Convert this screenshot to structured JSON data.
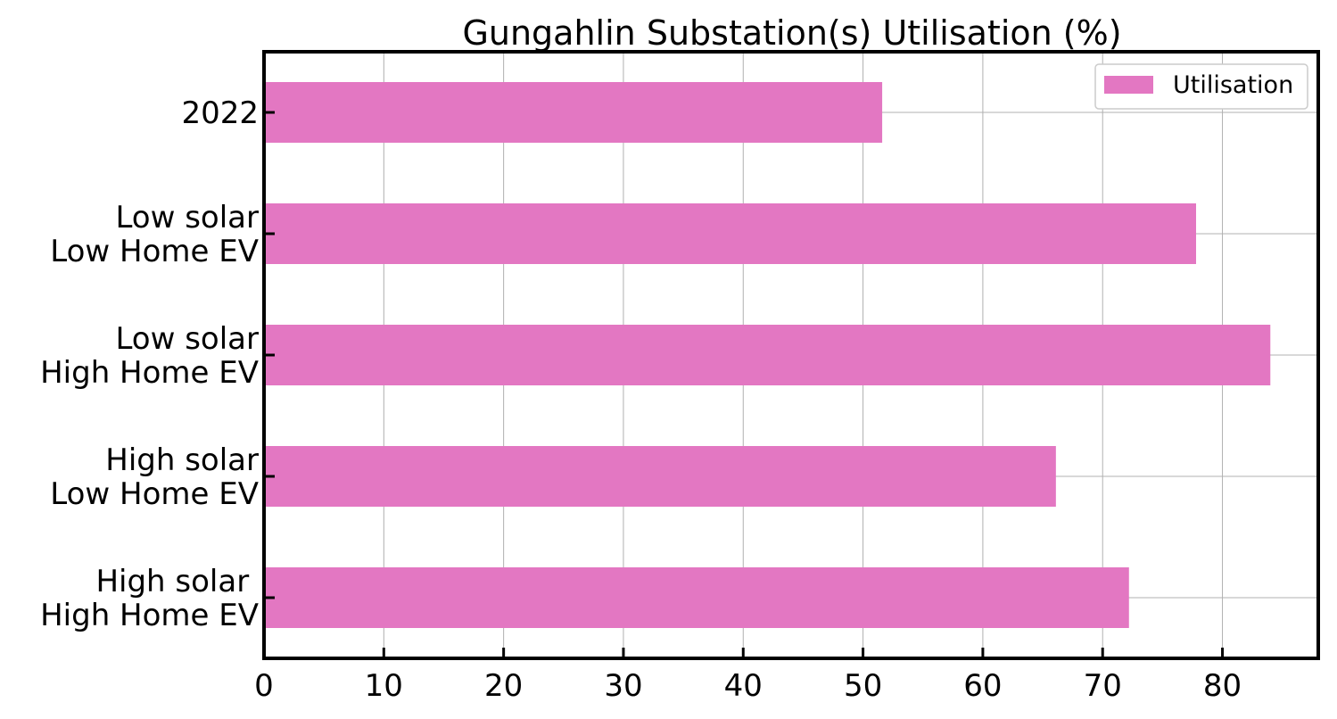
{
  "chart_data": {
    "type": "bar",
    "orientation": "horizontal",
    "title": "Gungahlin Substation(s) Utilisation (%)",
    "xlabel": "",
    "ylabel": "",
    "categories": [
      "2022",
      "Low solar\nLow Home EV",
      "Low solar\nHigh Home EV",
      "High solar\nLow Home EV",
      "High solar \nHigh Home EV"
    ],
    "series": [
      {
        "name": "Utilisation",
        "values": [
          51.6,
          77.8,
          84.0,
          66.1,
          72.2
        ],
        "color": "#e377c2"
      }
    ],
    "xlim": [
      0,
      88
    ],
    "xticks": [
      0,
      10,
      20,
      30,
      40,
      50,
      60,
      70,
      80
    ],
    "grid": true,
    "legend_position": "top-right"
  }
}
